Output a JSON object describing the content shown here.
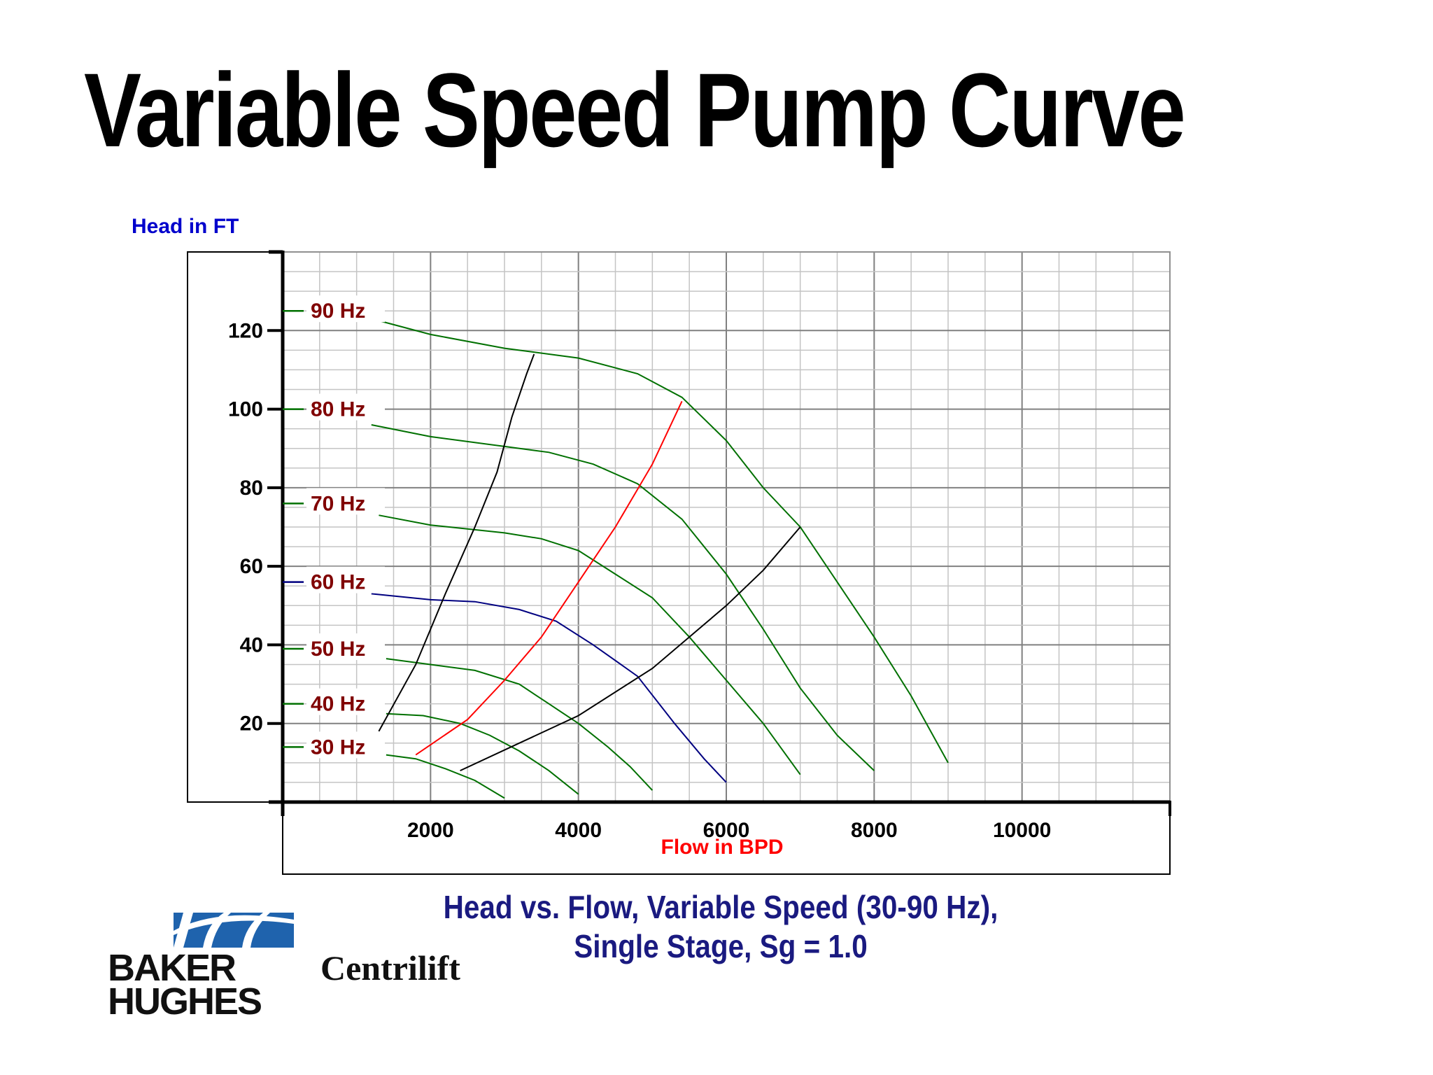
{
  "slide": {
    "title": "Variable Speed Pump Curve",
    "caption_line1": "Head vs. Flow, Variable Speed (30-90 Hz),",
    "caption_line2": "Single Stage, Sg = 1.0"
  },
  "logo": {
    "line1": "BAKER",
    "line2": "HUGHES",
    "product": "Centrilift",
    "brand_color": "#1f63ad"
  },
  "chart_data": {
    "type": "line",
    "ylabel": "Head in FT",
    "xlabel": "Flow in BPD",
    "xlim": [
      0,
      12000
    ],
    "ylim": [
      0,
      140
    ],
    "x_ticks": [
      2000,
      4000,
      6000,
      8000,
      10000
    ],
    "y_ticks": [
      20,
      40,
      60,
      80,
      100,
      120
    ],
    "grid": true,
    "colors": {
      "ylabel": "#0000cc",
      "xlabel": "#ff0000",
      "hz_label": "#800000",
      "curve_default": "#007000",
      "curve_60hz": "#000080",
      "bep_line": "#ff0000",
      "range_lines": "#000000"
    },
    "series": [
      {
        "name": "90 Hz",
        "label_at": 125,
        "color": "#007000",
        "points": [
          [
            1200,
            123
          ],
          [
            2000,
            119
          ],
          [
            3000,
            115.5
          ],
          [
            4000,
            113
          ],
          [
            4800,
            109
          ],
          [
            5400,
            103
          ],
          [
            6000,
            92
          ],
          [
            6500,
            80
          ],
          [
            7000,
            70
          ],
          [
            7500,
            56
          ],
          [
            8000,
            42
          ],
          [
            8500,
            27
          ],
          [
            9000,
            10
          ]
        ]
      },
      {
        "name": "80 Hz",
        "label_at": 100,
        "color": "#007000",
        "points": [
          [
            1200,
            96
          ],
          [
            2000,
            93
          ],
          [
            3000,
            90.5
          ],
          [
            3600,
            89
          ],
          [
            4200,
            86
          ],
          [
            4800,
            81
          ],
          [
            5400,
            72
          ],
          [
            6000,
            58
          ],
          [
            6500,
            44
          ],
          [
            7000,
            29
          ],
          [
            7500,
            17
          ],
          [
            8000,
            8
          ]
        ]
      },
      {
        "name": "70 Hz",
        "label_at": 76,
        "color": "#007000",
        "points": [
          [
            1300,
            73
          ],
          [
            2000,
            70.5
          ],
          [
            3000,
            68.5
          ],
          [
            3500,
            67
          ],
          [
            4000,
            64
          ],
          [
            4500,
            58
          ],
          [
            5000,
            52
          ],
          [
            5500,
            42
          ],
          [
            6000,
            31
          ],
          [
            6500,
            20
          ],
          [
            7000,
            7
          ]
        ]
      },
      {
        "name": "60 Hz",
        "label_at": 56,
        "color": "#000080",
        "points": [
          [
            1200,
            53
          ],
          [
            2000,
            51.5
          ],
          [
            2600,
            51
          ],
          [
            3200,
            49
          ],
          [
            3700,
            46
          ],
          [
            4200,
            40
          ],
          [
            4800,
            32
          ],
          [
            5300,
            20
          ],
          [
            5700,
            11
          ],
          [
            6000,
            5
          ]
        ]
      },
      {
        "name": "50 Hz",
        "label_at": 39,
        "color": "#007000",
        "points": [
          [
            1400,
            36.5
          ],
          [
            2000,
            35
          ],
          [
            2600,
            33.5
          ],
          [
            3200,
            30
          ],
          [
            3600,
            25
          ],
          [
            4000,
            20
          ],
          [
            4400,
            14
          ],
          [
            4700,
            9
          ],
          [
            5000,
            3
          ]
        ]
      },
      {
        "name": "40 Hz",
        "label_at": 25,
        "color": "#007000",
        "points": [
          [
            1400,
            22.5
          ],
          [
            1900,
            22
          ],
          [
            2400,
            20
          ],
          [
            2800,
            17
          ],
          [
            3200,
            13
          ],
          [
            3600,
            8
          ],
          [
            4000,
            2
          ]
        ]
      },
      {
        "name": "30 Hz",
        "label_at": 14,
        "color": "#007000",
        "points": [
          [
            1400,
            12
          ],
          [
            1800,
            11
          ],
          [
            2200,
            8.5
          ],
          [
            2600,
            5.5
          ],
          [
            3000,
            1
          ]
        ]
      }
    ],
    "reference_lines": [
      {
        "color": "#ff0000",
        "points": [
          [
            1800,
            12
          ],
          [
            2500,
            21
          ],
          [
            3000,
            31
          ],
          [
            3500,
            42
          ],
          [
            4000,
            56
          ],
          [
            4500,
            70
          ],
          [
            5000,
            86
          ],
          [
            5400,
            102
          ]
        ]
      },
      {
        "color": "#000000",
        "points": [
          [
            1300,
            18
          ],
          [
            1800,
            35
          ],
          [
            2200,
            53
          ],
          [
            2600,
            70
          ],
          [
            2900,
            84
          ],
          [
            3100,
            98
          ],
          [
            3300,
            109
          ],
          [
            3400,
            114
          ]
        ]
      },
      {
        "color": "#000000",
        "points": [
          [
            2400,
            8
          ],
          [
            3200,
            15
          ],
          [
            4000,
            22
          ],
          [
            5000,
            34
          ],
          [
            6000,
            50
          ],
          [
            6500,
            59
          ],
          [
            7000,
            70
          ]
        ]
      }
    ]
  }
}
